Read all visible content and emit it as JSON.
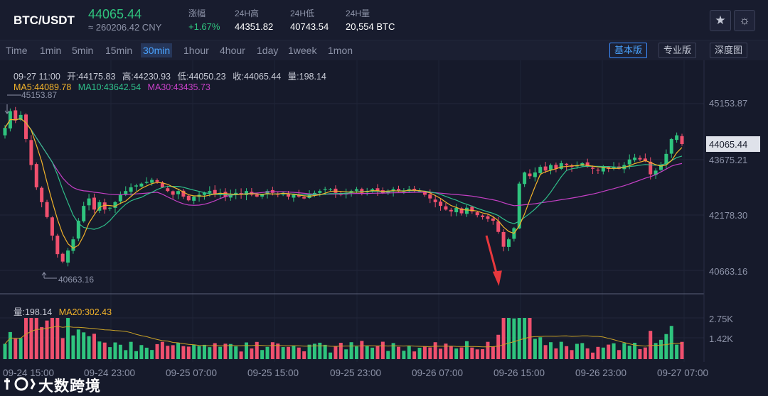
{
  "header": {
    "symbol": "BTC/USDT",
    "price": "44065.44",
    "cny": "≈ 260206.42 CNY",
    "change_label": "涨幅",
    "change_value": "+1.67%",
    "high_label": "24H高",
    "high_value": "44351.82",
    "low_label": "24H低",
    "low_value": "40743.54",
    "volume_label": "24H量",
    "volume_value": "20,554 BTC",
    "star_icon": "star-icon",
    "theme_icon": "sun-icon"
  },
  "toolbar": {
    "intervals": [
      "Time",
      "1min",
      "5min",
      "15min",
      "30min",
      "1hour",
      "4hour",
      "1day",
      "1week",
      "1mon"
    ],
    "active_interval": "30min",
    "views": [
      "基本版",
      "专业版",
      "深度图"
    ],
    "active_view": "基本版"
  },
  "ohlc": {
    "date": "09-27 11:00",
    "open": "开:44175.83",
    "high": "高:44230.93",
    "low": "低:44050.23",
    "close": "收:44065.44",
    "volume": "量:198.14"
  },
  "ma": {
    "ma5": "MA5:44089.78",
    "ma10": "MA10:43642.54",
    "ma30": "MA30:43435.73"
  },
  "vol_legend": {
    "vol": "量:198.14",
    "ma20": "MA20:302.43"
  },
  "price_axis": {
    "ticks": [
      "45153.87",
      "43675.21",
      "42178.30",
      "40663.16"
    ],
    "current": "44065.44"
  },
  "vol_axis": {
    "ticks": [
      "2.75K",
      "1.42K"
    ]
  },
  "time_axis": [
    "09-24 15:00",
    "09-24 23:00",
    "09-25 07:00",
    "09-25 15:00",
    "09-25 23:00",
    "09-26 07:00",
    "09-26 15:00",
    "09-26 23:00",
    "09-27 07:00"
  ],
  "annotations": {
    "max_label": "45153.87",
    "min_label": "40663.16"
  },
  "watermark": "大数跨境",
  "colors": {
    "up": "#2fc47e",
    "down": "#f0506e",
    "ma5": "#f2b32a",
    "ma10": "#2fbf8a",
    "ma30": "#c640c6"
  },
  "chart_data": {
    "type": "candlestick",
    "interval": "30min",
    "closes": [
      44500,
      44950,
      44700,
      44850,
      44200,
      43500,
      42900,
      42500,
      42100,
      41600,
      41100,
      40900,
      41200,
      41500,
      42000,
      42400,
      42600,
      42300,
      42500,
      42300,
      42350,
      42500,
      42700,
      42800,
      42900,
      42950,
      43000,
      43050,
      43100,
      43050,
      42900,
      42800,
      42700,
      42800,
      42650,
      42550,
      42650,
      42700,
      42750,
      42800,
      42700,
      42750,
      42650,
      42700,
      42750,
      42700,
      42800,
      42700,
      42650,
      42700,
      42800,
      42750,
      42700,
      42750,
      42650,
      42700,
      42650,
      42600,
      42700,
      42750,
      42800,
      42850,
      42850,
      42750,
      42700,
      42750,
      42800,
      42850,
      42750,
      42800,
      42850,
      42800,
      42750,
      42800,
      42850,
      42800,
      42800,
      42850,
      42800,
      42800,
      42700,
      42600,
      42500,
      42400,
      42300,
      42250,
      42350,
      42200,
      42350,
      42250,
      42150,
      42100,
      42050,
      42000,
      41700,
      41300,
      41500,
      41800,
      43000,
      43300,
      43200,
      43300,
      43450,
      43350,
      43500,
      43400,
      43550,
      43500,
      43450,
      43500,
      43550,
      43450,
      43400,
      43350,
      43450,
      43400,
      43450,
      43400,
      43500,
      43650,
      43700,
      43650,
      43600,
      43250,
      43350,
      43500,
      43800,
      44200,
      44300,
      44065
    ],
    "volume_axis_ticks": [
      "2.75K",
      "1.42K"
    ],
    "price_range": [
      40663.16,
      45153.87
    ],
    "x_labels": [
      "09-24 15:00",
      "09-24 23:00",
      "09-25 07:00",
      "09-25 15:00",
      "09-25 23:00",
      "09-26 07:00",
      "09-26 15:00",
      "09-26 23:00",
      "09-27 07:00"
    ]
  }
}
